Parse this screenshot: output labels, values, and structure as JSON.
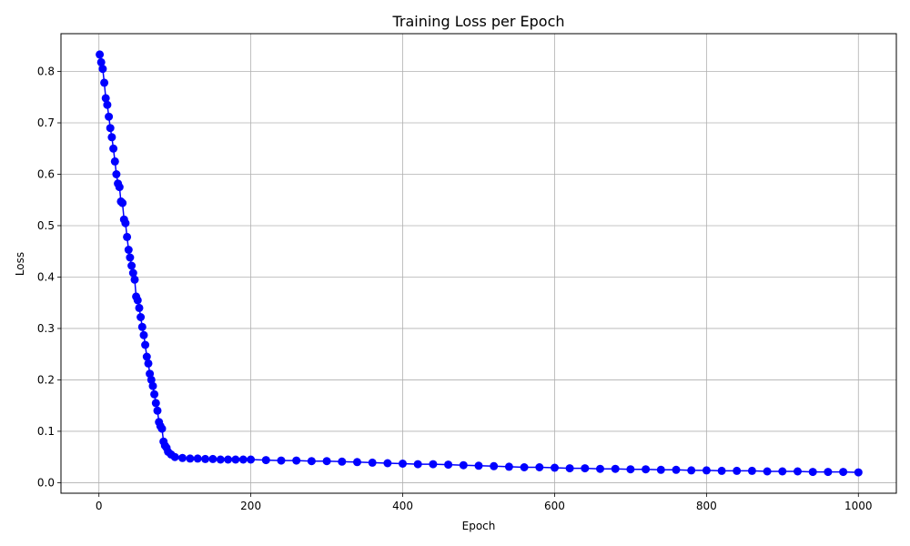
{
  "chart_data": {
    "type": "line",
    "title": "Training Loss per Epoch",
    "xlabel": "Epoch",
    "ylabel": "Loss",
    "xlim": [
      -50,
      1050
    ],
    "ylim": [
      -0.0205,
      0.8735
    ],
    "xticks": [
      0,
      200,
      400,
      600,
      800,
      1000
    ],
    "yticks": [
      0.0,
      0.1,
      0.2,
      0.3,
      0.4,
      0.5,
      0.6,
      0.7,
      0.8
    ],
    "ytick_labels": [
      "0.0",
      "0.1",
      "0.2",
      "0.3",
      "0.4",
      "0.5",
      "0.6",
      "0.7",
      "0.8"
    ],
    "grid": true,
    "marker": "circle",
    "series": [
      {
        "color": "#0000ff",
        "x": [
          1,
          3,
          5,
          7,
          9,
          11,
          13,
          15,
          17,
          19,
          21,
          23,
          25,
          27,
          29,
          31,
          33,
          35,
          37,
          39,
          41,
          43,
          45,
          47,
          49,
          51,
          53,
          55,
          57,
          59,
          61,
          63,
          65,
          67,
          69,
          71,
          73,
          75,
          77,
          79,
          81,
          83,
          85,
          87,
          89,
          91,
          95,
          100,
          110,
          120,
          130,
          140,
          150,
          160,
          170,
          180,
          190,
          200,
          220,
          240,
          260,
          280,
          300,
          320,
          340,
          360,
          380,
          400,
          420,
          440,
          460,
          480,
          500,
          520,
          540,
          560,
          580,
          600,
          620,
          640,
          660,
          680,
          700,
          720,
          740,
          760,
          780,
          800,
          820,
          840,
          860,
          880,
          900,
          920,
          940,
          960,
          980,
          1000
        ],
        "y": [
          0.833,
          0.818,
          0.805,
          0.778,
          0.748,
          0.735,
          0.712,
          0.69,
          0.672,
          0.65,
          0.625,
          0.6,
          0.582,
          0.575,
          0.547,
          0.544,
          0.512,
          0.505,
          0.478,
          0.453,
          0.438,
          0.422,
          0.408,
          0.395,
          0.362,
          0.355,
          0.34,
          0.322,
          0.303,
          0.287,
          0.268,
          0.245,
          0.232,
          0.212,
          0.2,
          0.188,
          0.172,
          0.155,
          0.14,
          0.118,
          0.11,
          0.105,
          0.08,
          0.072,
          0.068,
          0.06,
          0.055,
          0.05,
          0.048,
          0.047,
          0.047,
          0.046,
          0.046,
          0.045,
          0.045,
          0.045,
          0.045,
          0.045,
          0.044,
          0.043,
          0.043,
          0.042,
          0.042,
          0.041,
          0.04,
          0.039,
          0.038,
          0.037,
          0.036,
          0.036,
          0.035,
          0.034,
          0.033,
          0.032,
          0.031,
          0.03,
          0.03,
          0.029,
          0.028,
          0.028,
          0.027,
          0.027,
          0.026,
          0.026,
          0.025,
          0.025,
          0.024,
          0.024,
          0.023,
          0.023,
          0.023,
          0.022,
          0.022,
          0.022,
          0.021,
          0.021,
          0.021,
          0.02
        ]
      }
    ]
  }
}
